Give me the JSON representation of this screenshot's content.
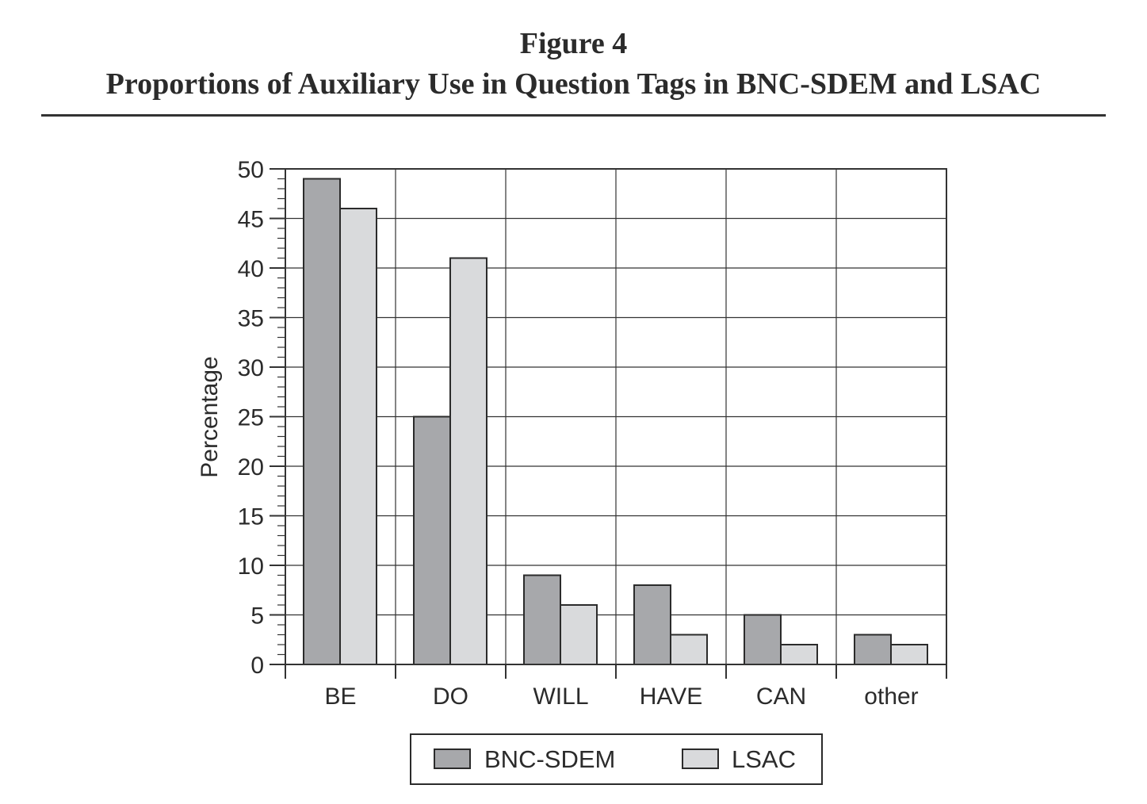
{
  "figure": {
    "label": "Figure 4",
    "title": "Proportions of Auxiliary Use in Question Tags in BNC-SDEM and LSAC"
  },
  "chart_data": {
    "type": "bar",
    "title": "Proportions of Auxiliary Use in Question Tags in BNC-SDEM and LSAC",
    "xlabel": "",
    "ylabel": "Percentage",
    "categories": [
      "BE",
      "DO",
      "WILL",
      "HAVE",
      "CAN",
      "other"
    ],
    "series": [
      {
        "name": "BNC-SDEM",
        "values": [
          49,
          25,
          9,
          8,
          5,
          3
        ],
        "color": "#a7a8ab"
      },
      {
        "name": "LSAC",
        "values": [
          46,
          41,
          6,
          3,
          2,
          2
        ],
        "color": "#d9dadc"
      }
    ],
    "ylim": [
      0,
      50
    ],
    "yticks": [
      "0",
      "5",
      "10",
      "15",
      "20",
      "25",
      "30",
      "35",
      "40",
      "45",
      "50"
    ],
    "grid": true,
    "legend": "bottom-center"
  }
}
